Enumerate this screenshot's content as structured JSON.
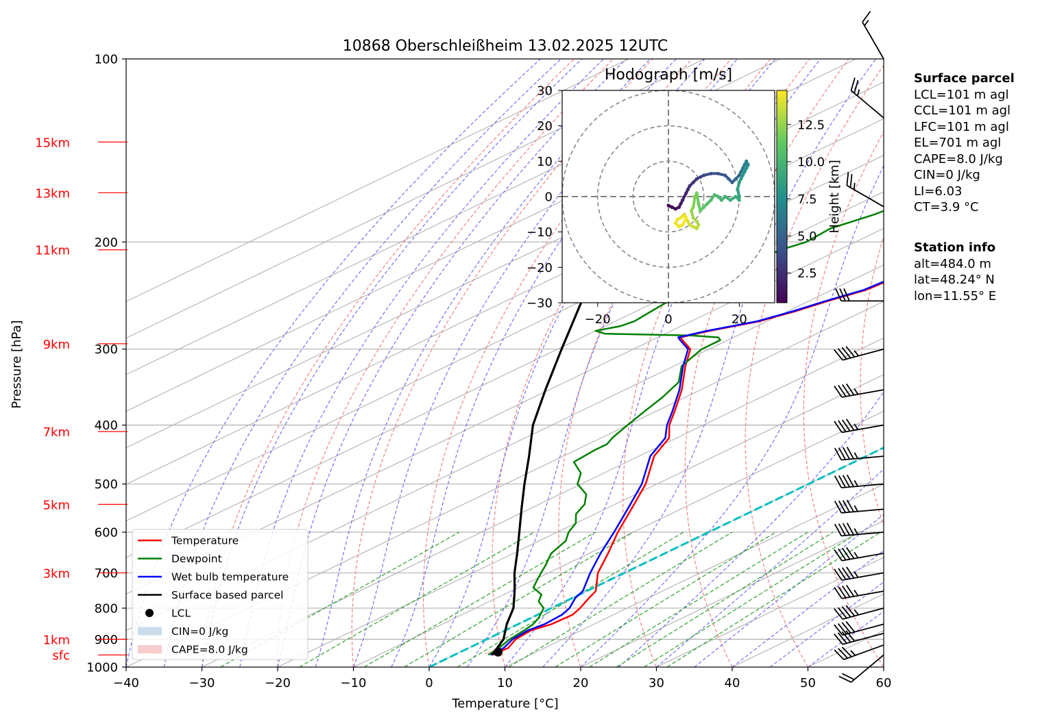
{
  "title": "10868 Oberschleißheim 13.02.2025 12UTC",
  "colors": {
    "temperature": "#ff0000",
    "dewpoint": "#008000",
    "wetbulb": "#0000ff",
    "parcel": "#000000",
    "height_labels": "#ff0000",
    "isotherm_zero": "#00bfbf"
  },
  "chart_data": [
    {
      "type": "line",
      "title": "10868 Oberschleißheim 13.02.2025 12UTC",
      "xlabel": "Temperature [°C]",
      "ylabel": "Pressure [hPa]",
      "xlim": [
        -40,
        60
      ],
      "ylim": [
        1000,
        100
      ],
      "yscale": "log",
      "skew": true,
      "grid": true,
      "legend_position": "lower-left",
      "x_ticks": [
        "−40",
        "−30",
        "−20",
        "−10",
        "0",
        "10",
        "20",
        "30",
        "40",
        "50",
        "60"
      ],
      "y_ticks": [
        "100",
        "200",
        "300",
        "400",
        "500",
        "600",
        "700",
        "800",
        "900",
        "1000"
      ],
      "height_labels": [
        {
          "label": "15km",
          "p": 137
        },
        {
          "label": "13km",
          "p": 166
        },
        {
          "label": "11km",
          "p": 206
        },
        {
          "label": "9km",
          "p": 294
        },
        {
          "label": "7km",
          "p": 410
        },
        {
          "label": "5km",
          "p": 540
        },
        {
          "label": "3km",
          "p": 700
        },
        {
          "label": "1km",
          "p": 900
        },
        {
          "label": "sfc",
          "p": 955
        }
      ],
      "legend": [
        {
          "label": "Temperature",
          "kind": "line",
          "color": "#ff0000"
        },
        {
          "label": "Dewpoint",
          "kind": "line",
          "color": "#008000"
        },
        {
          "label": "Wet bulb temperature",
          "kind": "line",
          "color": "#0000ff"
        },
        {
          "label": "Surface based parcel",
          "kind": "line",
          "color": "#000000"
        },
        {
          "label": "LCL",
          "kind": "marker",
          "color": "#000000"
        },
        {
          "label": "CIN=0 J/kg",
          "kind": "patch",
          "color": "#b3cde3"
        },
        {
          "label": "CAPE=8.0 J/kg",
          "kind": "patch",
          "color": "#f4b6b6"
        }
      ],
      "series": [
        {
          "name": "Temperature",
          "p": [
            955,
            930,
            900,
            870,
            850,
            820,
            800,
            770,
            750,
            700,
            650,
            600,
            550,
            500,
            450,
            420,
            400,
            380,
            350,
            320,
            300,
            290,
            287,
            280,
            270,
            260,
            250,
            240,
            230,
            220,
            210,
            200,
            190,
            180,
            175,
            172,
            170,
            165,
            160,
            155,
            150,
            145,
            140,
            137
          ],
          "t": [
            5.0,
            5.2,
            3.8,
            3.4,
            4.4,
            4.6,
            3.8,
            2.2,
            1.2,
            -3.5,
            -7.5,
            -12.0,
            -16.5,
            -21.5,
            -28.0,
            -31.0,
            -34.5,
            -37.5,
            -42.5,
            -48.5,
            -52.5,
            -56.0,
            -57.0,
            -55.0,
            -51.0,
            -49.0,
            -47.5,
            -45.5,
            -45.0,
            -42.5,
            -40.0,
            -40.5,
            -38.0,
            -37.5,
            -35.5,
            -36.5,
            -38.0,
            -37.5,
            -35.0,
            -34.0,
            -32.5,
            -30.5,
            -30.0,
            -28.5
          ]
        },
        {
          "name": "Dewpoint",
          "p": [
            955,
            930,
            900,
            870,
            850,
            830,
            800,
            780,
            760,
            740,
            720,
            700,
            680,
            650,
            620,
            600,
            580,
            560,
            540,
            520,
            500,
            480,
            460,
            440,
            430,
            420,
            400,
            380,
            360,
            340,
            320,
            300,
            290,
            287,
            285,
            283,
            280,
            275,
            270,
            260,
            250,
            240,
            230,
            220,
            210,
            205,
            200,
            190,
            180,
            170,
            165,
            160,
            150,
            145,
            140,
            137
          ],
          "t": [
            4.5,
            4.0,
            3.0,
            2.5,
            2.0,
            1.0,
            -1.0,
            -3.5,
            -5.0,
            -8.0,
            -9.5,
            -11.0,
            -12.5,
            -15.0,
            -16.5,
            -18.5,
            -20.0,
            -22.5,
            -24.0,
            -26.5,
            -30.5,
            -33.0,
            -37.0,
            -37.5,
            -37.5,
            -38.5,
            -40.0,
            -41.5,
            -43.0,
            -45.0,
            -49.0,
            -51.0,
            -51.0,
            -52.0,
            -56.0,
            -68.0,
            -70.0,
            -68.0,
            -67.5,
            -68.0,
            -68.5,
            -68.5,
            -68.0,
            -67.5,
            -68.0,
            -67.5,
            -66.5,
            -67.0,
            -65.0,
            -64.0,
            -65.5,
            -63.5,
            -62.5,
            -61.0,
            -61.5,
            -60.0
          ]
        },
        {
          "name": "Wet bulb temperature",
          "p": [
            955,
            930,
            900,
            870,
            850,
            820,
            800,
            770,
            750,
            700,
            650,
            600,
            550,
            500,
            450,
            420,
            400,
            380,
            350,
            320,
            300,
            290,
            287,
            280,
            270,
            260,
            250,
            240,
            230,
            220,
            210,
            200,
            190,
            180,
            175,
            172,
            170,
            165,
            160,
            155,
            150,
            145,
            140,
            137
          ],
          "t": [
            4.8,
            4.6,
            3.4,
            3.0,
            3.5,
            3.2,
            2.4,
            0.4,
            -0.5,
            -4.5,
            -8.5,
            -12.5,
            -17.0,
            -22.0,
            -28.5,
            -31.5,
            -34.8,
            -37.8,
            -42.8,
            -48.8,
            -52.8,
            -56.3,
            -57.3,
            -55.3,
            -51.3,
            -49.3,
            -47.8,
            -45.8,
            -45.3,
            -42.8,
            -40.3,
            -40.8,
            -38.3,
            -37.8,
            -35.8,
            -36.8,
            -38.3,
            -37.8,
            -35.3,
            -34.3,
            -32.8,
            -30.8,
            -30.3,
            -28.8
          ]
        },
        {
          "name": "Surface based parcel",
          "p": [
            955,
            900,
            850,
            800,
            750,
            700,
            650,
            600,
            550,
            500,
            450,
            400,
            350,
            300,
            250,
            200
          ],
          "t": [
            5.0,
            2.2,
            -1.5,
            -5.0,
            -9.5,
            -14.5,
            -19.5,
            -25.0,
            -31.0,
            -37.5,
            -44.5,
            -52.5,
            -60.5,
            -69.5,
            -80.0,
            -92.0
          ]
        }
      ],
      "lcl": {
        "t": 5.0,
        "p": 945
      },
      "wind_barbs": [
        {
          "p": 955,
          "speed_kt": 20,
          "dir_deg": 230
        },
        {
          "p": 920,
          "speed_kt": 35,
          "dir_deg": 250
        },
        {
          "p": 880,
          "speed_kt": 40,
          "dir_deg": 255
        },
        {
          "p": 850,
          "speed_kt": 40,
          "dir_deg": 255
        },
        {
          "p": 800,
          "speed_kt": 45,
          "dir_deg": 255
        },
        {
          "p": 750,
          "speed_kt": 45,
          "dir_deg": 260
        },
        {
          "p": 700,
          "speed_kt": 45,
          "dir_deg": 260
        },
        {
          "p": 650,
          "speed_kt": 45,
          "dir_deg": 260
        },
        {
          "p": 600,
          "speed_kt": 45,
          "dir_deg": 265
        },
        {
          "p": 550,
          "speed_kt": 45,
          "dir_deg": 265
        },
        {
          "p": 500,
          "speed_kt": 45,
          "dir_deg": 265
        },
        {
          "p": 450,
          "speed_kt": 45,
          "dir_deg": 265
        },
        {
          "p": 400,
          "speed_kt": 45,
          "dir_deg": 260
        },
        {
          "p": 350,
          "speed_kt": 45,
          "dir_deg": 260
        },
        {
          "p": 300,
          "speed_kt": 45,
          "dir_deg": 255
        },
        {
          "p": 250,
          "speed_kt": 30,
          "dir_deg": 270
        },
        {
          "p": 175,
          "speed_kt": 25,
          "dir_deg": 300
        },
        {
          "p": 125,
          "speed_kt": 25,
          "dir_deg": 310
        },
        {
          "p": 100,
          "speed_kt": 15,
          "dir_deg": 330
        }
      ]
    },
    {
      "type": "scatter",
      "title": "Hodograph [m/s]",
      "xlim": [
        -30,
        30
      ],
      "ylim": [
        -30,
        30
      ],
      "x_ticks": [
        "−20",
        "0",
        "20"
      ],
      "y_ticks": [
        "30",
        "20",
        "10",
        "0",
        "−10",
        "−20",
        "−30"
      ],
      "rings": [
        10,
        20,
        30
      ],
      "colorbar": {
        "label": "Height [km]",
        "ticks": [
          "2.5",
          "5.0",
          "7.5",
          "10.0",
          "12.5"
        ],
        "range": [
          0.5,
          14.8
        ]
      },
      "u": [
        0,
        1,
        2,
        3,
        3.5,
        4,
        5,
        5.5,
        6,
        7,
        8,
        9,
        10,
        12,
        14,
        16,
        17,
        18,
        19,
        20,
        20.5,
        21,
        21.5,
        22,
        22.5,
        22,
        21.5,
        21,
        20.5,
        20,
        19.5,
        20,
        20,
        19,
        17.5,
        16,
        15,
        14,
        13,
        12,
        11,
        10,
        9,
        8.5,
        8,
        7.5,
        7,
        6.5,
        7,
        8,
        8.5,
        8,
        7,
        6,
        5.5,
        5,
        4.5,
        4,
        3.5,
        2.5,
        2,
        2.5,
        3,
        4,
        5
      ],
      "v": [
        -2.5,
        -3,
        -3.5,
        -3,
        -2,
        -1,
        1,
        2,
        3,
        4,
        5,
        5.5,
        6,
        6.5,
        6.5,
        6,
        5,
        4,
        5,
        6,
        7,
        8,
        9,
        10,
        9,
        8,
        7,
        6,
        5,
        4,
        2,
        0,
        -1,
        0,
        -1,
        0,
        -1,
        0,
        0.5,
        -1,
        -2,
        -3,
        -4,
        -2,
        1,
        0,
        -3,
        -4,
        -6,
        -7,
        -8,
        -9,
        -8.5,
        -8,
        -7,
        -6,
        -5,
        -5.5,
        -6,
        -6.5,
        -7.5,
        -8,
        -8.5,
        -8,
        -6
      ],
      "h": [
        0.5,
        0.8,
        1.0,
        1.3,
        1.5,
        1.8,
        2.0,
        2.3,
        2.6,
        2.9,
        3.2,
        3.5,
        3.8,
        4.1,
        4.3,
        4.5,
        4.8,
        5.0,
        5.3,
        5.6,
        6.0,
        6.3,
        6.6,
        7.0,
        7.3,
        7.6,
        7.9,
        8.1,
        8.3,
        8.5,
        8.7,
        8.9,
        9.1,
        9.3,
        9.5,
        9.7,
        9.9,
        10.1,
        10.3,
        10.5,
        10.8,
        11.0,
        11.3,
        11.5,
        11.8,
        12.0,
        12.3,
        12.5,
        12.8,
        13.0,
        13.2,
        13.4,
        13.6,
        13.8,
        14.0,
        14.1,
        14.2,
        14.3,
        14.4,
        14.5,
        14.5,
        14.6,
        14.6,
        14.7,
        14.8
      ]
    }
  ],
  "surface_parcel": {
    "heading": "Surface parcel",
    "lines": [
      "LCL=101 m agl",
      "CCL=101 m agl",
      "LFC=101 m agl",
      "EL=701 m agl",
      "CAPE=8.0 J/kg",
      "CIN=0 J/kg",
      "LI=6.03",
      "CT=3.9 °C"
    ]
  },
  "station_info": {
    "heading": "Station info",
    "lines": [
      "alt=484.0 m",
      "lat=48.24° N",
      "lon=11.55° E"
    ]
  }
}
